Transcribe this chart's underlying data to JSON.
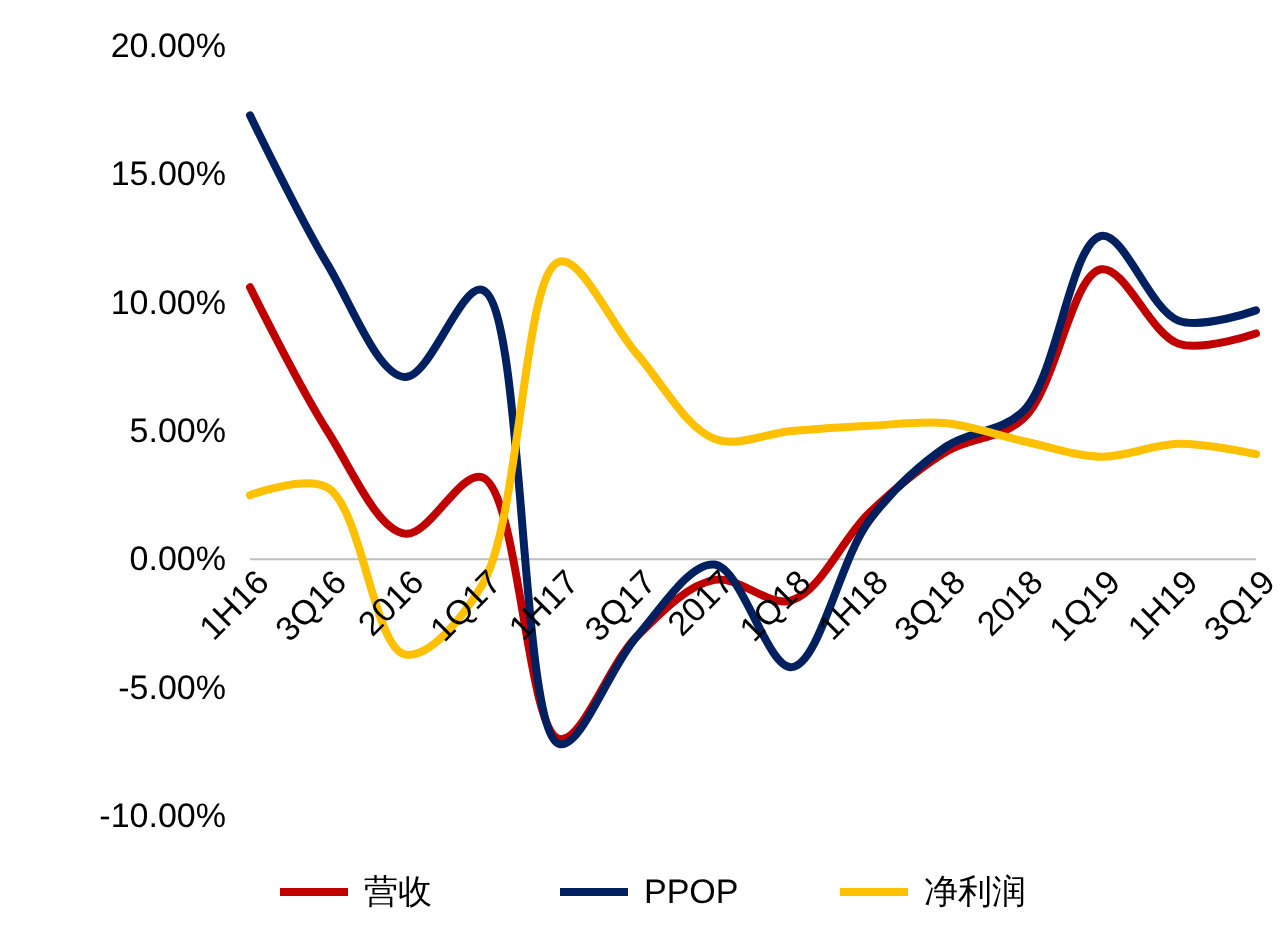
{
  "chart_data": {
    "type": "line",
    "categories": [
      "1H16",
      "3Q16",
      "2016",
      "1Q17",
      "1H17",
      "3Q17",
      "2017",
      "1Q18",
      "1H18",
      "3Q18",
      "2018",
      "1Q19",
      "1H19",
      "3Q19"
    ],
    "series": [
      {
        "name": "营收",
        "color": "#c00000",
        "values": [
          10.6,
          5.0,
          1.0,
          3.2,
          -7.0,
          -3.0,
          -0.8,
          -1.6,
          1.8,
          4.2,
          5.5,
          11.3,
          8.4,
          8.8
        ]
      },
      {
        "name": "PPOP",
        "color": "#002060",
        "values": [
          17.3,
          11.5,
          7.1,
          10.5,
          -7.2,
          -3.0,
          -0.2,
          -4.2,
          1.5,
          4.4,
          5.8,
          12.6,
          9.3,
          9.7
        ]
      },
      {
        "name": "净利润",
        "color": "#ffc000",
        "values": [
          2.5,
          2.8,
          -3.7,
          -1.0,
          11.6,
          8.0,
          4.7,
          5.0,
          5.2,
          5.3,
          4.6,
          4.0,
          4.5,
          4.1
        ]
      }
    ],
    "ylim": [
      -10,
      20
    ],
    "yticks": [
      {
        "value": -10,
        "label": "-10.00%"
      },
      {
        "value": -5,
        "label": "-5.00%"
      },
      {
        "value": 0,
        "label": "0.00%"
      },
      {
        "value": 5,
        "label": "5.00%"
      },
      {
        "value": 10,
        "label": "10.00%"
      },
      {
        "value": 15,
        "label": "15.00%"
      },
      {
        "value": 20,
        "label": "20.00%"
      }
    ],
    "grid": false,
    "legend": "bottom",
    "marker": "none",
    "line_style": "solid"
  }
}
